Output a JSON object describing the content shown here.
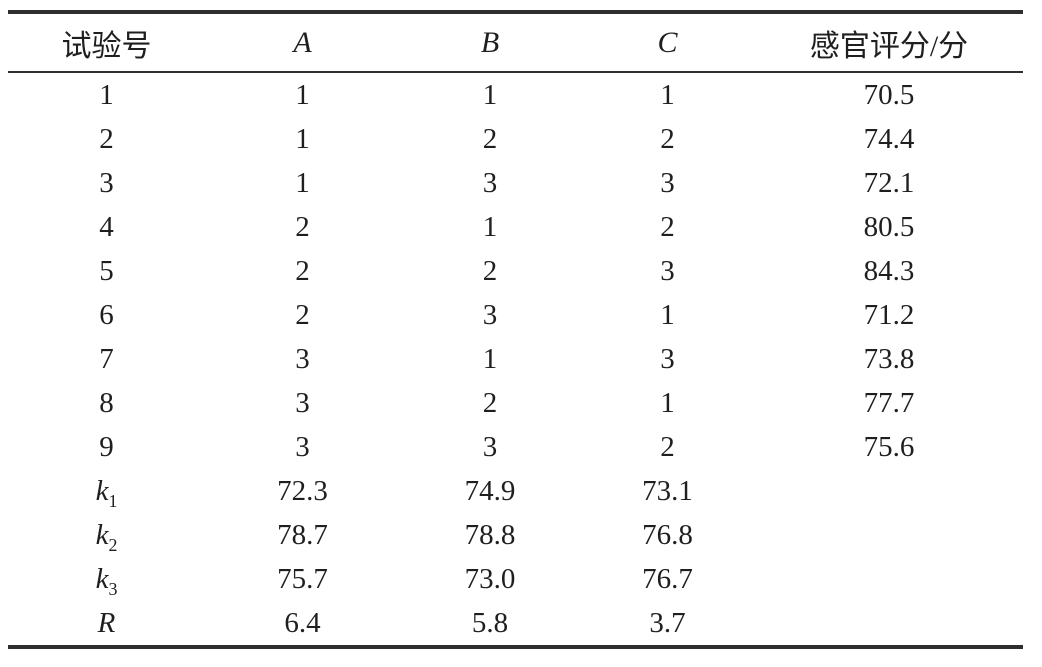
{
  "page": {
    "background": "#ffffff",
    "text_color": "#1f1f1f",
    "rule_color": "#2e2e2e"
  },
  "table": {
    "name": "orthogonal-test-results",
    "columns": [
      {
        "label": "试验号",
        "italic": false
      },
      {
        "label": "A",
        "italic": true
      },
      {
        "label": "B",
        "italic": true
      },
      {
        "label": "C",
        "italic": true
      },
      {
        "label": "感官评分/分",
        "italic": false
      }
    ],
    "rows": [
      {
        "label": "1",
        "italic": false,
        "cells": [
          "1",
          "1",
          "1",
          "70.5"
        ]
      },
      {
        "label": "2",
        "italic": false,
        "cells": [
          "1",
          "2",
          "2",
          "74.4"
        ]
      },
      {
        "label": "3",
        "italic": false,
        "cells": [
          "1",
          "3",
          "3",
          "72.1"
        ]
      },
      {
        "label": "4",
        "italic": false,
        "cells": [
          "2",
          "1",
          "2",
          "80.5"
        ]
      },
      {
        "label": "5",
        "italic": false,
        "cells": [
          "2",
          "2",
          "3",
          "84.3"
        ]
      },
      {
        "label": "6",
        "italic": false,
        "cells": [
          "2",
          "3",
          "1",
          "71.2"
        ]
      },
      {
        "label": "7",
        "italic": false,
        "cells": [
          "3",
          "1",
          "3",
          "73.8"
        ]
      },
      {
        "label": "8",
        "italic": false,
        "cells": [
          "3",
          "2",
          "1",
          "77.7"
        ]
      },
      {
        "label": "9",
        "italic": false,
        "cells": [
          "3",
          "3",
          "2",
          "75.6"
        ]
      },
      {
        "label": "k",
        "sub": "1",
        "italic": true,
        "cells": [
          "72.3",
          "74.9",
          "73.1",
          ""
        ]
      },
      {
        "label": "k",
        "sub": "2",
        "italic": true,
        "cells": [
          "78.7",
          "78.8",
          "76.8",
          ""
        ]
      },
      {
        "label": "k",
        "sub": "3",
        "italic": true,
        "cells": [
          "75.7",
          "73.0",
          "76.7",
          ""
        ]
      },
      {
        "label": "R",
        "italic": true,
        "cells": [
          "6.4",
          "5.8",
          "3.7",
          ""
        ]
      }
    ]
  }
}
